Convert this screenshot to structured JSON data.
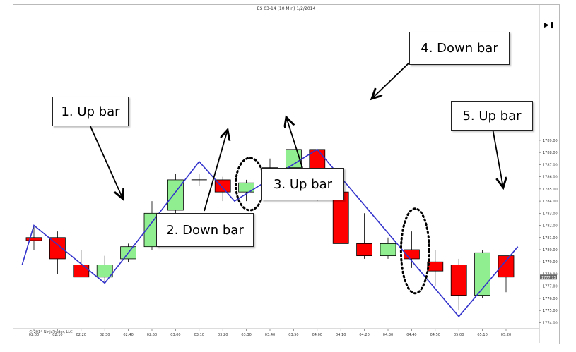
{
  "title": "ES 03-14 (10 Min)  1/2/2014",
  "copyright": "© 2014 NinjaTrader, LLC",
  "current_price": "1777.75",
  "colors": {
    "up": "#90ee90",
    "down": "#ff0000",
    "zigzag": "#3333cc",
    "oval": "#000000"
  },
  "callouts": [
    {
      "key": "c1",
      "label": "1. Up bar"
    },
    {
      "key": "c2",
      "label": "2. Down bar"
    },
    {
      "key": "c3",
      "label": "3. Up bar"
    },
    {
      "key": "c4",
      "label": "4. Down bar"
    },
    {
      "key": "c5",
      "label": "5. Up bar"
    }
  ],
  "chart_data": {
    "type": "candlestick",
    "title": "ES 03-14 (10 Min)  1/2/2014",
    "y_range": [
      1773.5,
      1799.5
    ],
    "y_ticks": [
      "1774.00",
      "1775.00",
      "1776.00",
      "1777.00",
      "1778.00",
      "1779.00",
      "1780.00",
      "1781.00",
      "1782.00",
      "1783.00",
      "1784.00",
      "1785.00",
      "1786.00",
      "1787.00",
      "1788.00",
      "1789.00"
    ],
    "x_ticks": [
      "02:00",
      "02:10",
      "02:20",
      "02:30",
      "02:40",
      "02:50",
      "03:00",
      "03:10",
      "03:20",
      "03:30",
      "03:40",
      "03:50",
      "04:00",
      "04:10",
      "04:20",
      "04:30",
      "04:40",
      "04:50",
      "05:00",
      "05:10",
      "05:20"
    ],
    "bars": [
      {
        "o": 1781.0,
        "h": 1782.0,
        "l": 1780.0,
        "c": 1780.75
      },
      {
        "o": 1781.0,
        "h": 1781.5,
        "l": 1778.0,
        "c": 1779.25
      },
      {
        "o": 1778.75,
        "h": 1780.0,
        "l": 1777.75,
        "c": 1777.75
      },
      {
        "o": 1777.75,
        "h": 1779.5,
        "l": 1777.25,
        "c": 1778.75
      },
      {
        "o": 1779.25,
        "h": 1780.5,
        "l": 1779.0,
        "c": 1780.25
      },
      {
        "o": 1780.25,
        "h": 1784.0,
        "l": 1780.0,
        "c": 1783.0
      },
      {
        "o": 1783.25,
        "h": 1786.25,
        "l": 1783.0,
        "c": 1785.75
      },
      {
        "o": 1785.75,
        "h": 1786.25,
        "l": 1785.25,
        "c": 1785.75
      },
      {
        "o": 1785.75,
        "h": 1786.0,
        "l": 1784.0,
        "c": 1784.75
      },
      {
        "o": 1784.75,
        "h": 1785.75,
        "l": 1784.0,
        "c": 1785.5
      },
      {
        "o": 1785.75,
        "h": 1787.5,
        "l": 1784.5,
        "c": 1786.75
      },
      {
        "o": 1786.75,
        "h": 1788.25,
        "l": 1786.5,
        "c": 1788.25
      },
      {
        "o": 1788.25,
        "h": 1788.25,
        "l": 1784.0,
        "c": 1784.75
      },
      {
        "o": 1784.75,
        "h": 1784.75,
        "l": 1780.5,
        "c": 1780.5
      },
      {
        "o": 1780.5,
        "h": 1783.0,
        "l": 1779.25,
        "c": 1779.5
      },
      {
        "o": 1779.5,
        "h": 1781.0,
        "l": 1779.25,
        "c": 1780.5
      },
      {
        "o": 1780.0,
        "h": 1781.5,
        "l": 1778.5,
        "c": 1779.25
      },
      {
        "o": 1779.0,
        "h": 1780.0,
        "l": 1777.0,
        "c": 1778.25
      },
      {
        "o": 1778.75,
        "h": 1779.25,
        "l": 1775.0,
        "c": 1776.25
      },
      {
        "o": 1776.25,
        "h": 1780.0,
        "l": 1776.0,
        "c": 1779.75
      },
      {
        "o": 1779.5,
        "h": 1779.5,
        "l": 1776.5,
        "c": 1777.75
      }
    ],
    "zigzag": [
      {
        "x": -0.5,
        "y": 1778.75
      },
      {
        "x": 0,
        "y": 1782.0
      },
      {
        "x": 3,
        "y": 1777.25
      },
      {
        "x": 7,
        "y": 1787.25
      },
      {
        "x": 8.5,
        "y": 1784.0
      },
      {
        "x": 12,
        "y": 1788.25
      },
      {
        "x": 18,
        "y": 1774.5
      },
      {
        "x": 20.5,
        "y": 1780.25
      }
    ]
  }
}
